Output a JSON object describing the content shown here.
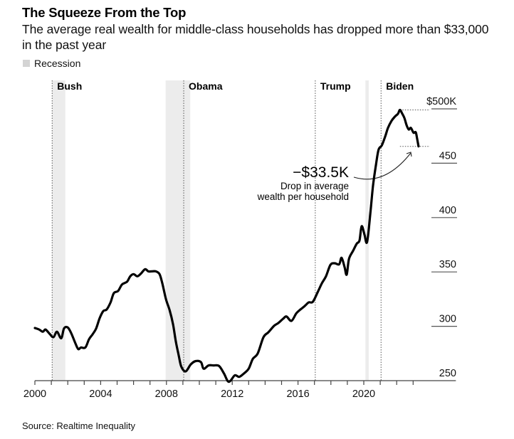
{
  "header": {
    "title": "The Squeeze From the Top",
    "subtitle": "The average real wealth for middle-class households has dropped more than $33,000 in the past year"
  },
  "legend": {
    "items": [
      {
        "label": "Recession",
        "color": "#d4d4d4"
      }
    ]
  },
  "footer": {
    "source": "Source: Realtime Inequality"
  },
  "chart_data": {
    "type": "line",
    "title": "The Squeeze From the Top",
    "subtitle": "The average real wealth for middle-class households has dropped more than $33,000 in the past year",
    "xlabel": "",
    "ylabel": "",
    "units": "thousands of dollars",
    "xlim": [
      2000,
      2025.6
    ],
    "ylim": [
      250,
      500
    ],
    "x_ticks": [
      2000,
      2001,
      2002,
      2003,
      2004,
      2005,
      2006,
      2007,
      2008,
      2009,
      2010,
      2011,
      2012,
      2013,
      2014,
      2015,
      2016,
      2017,
      2018,
      2019,
      2020,
      2021,
      2022,
      2023
    ],
    "x_tick_labels": [
      {
        "value": 2000,
        "label": "2000"
      },
      {
        "value": 2004,
        "label": "2004"
      },
      {
        "value": 2008,
        "label": "2008"
      },
      {
        "value": 2012,
        "label": "2012"
      },
      {
        "value": 2016,
        "label": "2016"
      },
      {
        "value": 2020,
        "label": "2020"
      }
    ],
    "y_ticks": [
      {
        "value": 500,
        "label": "$500K"
      },
      {
        "value": 450,
        "label": "450"
      },
      {
        "value": 400,
        "label": "400"
      },
      {
        "value": 350,
        "label": "350"
      },
      {
        "value": 300,
        "label": "300"
      },
      {
        "value": 250,
        "label": "250"
      }
    ],
    "y_axis_position": "right",
    "grid": false,
    "legend_position": "top-left",
    "line_color": "#000000",
    "recessions": [
      {
        "start": 2001.05,
        "end": 2001.85
      },
      {
        "start": 2007.95,
        "end": 2009.45
      },
      {
        "start": 2020.1,
        "end": 2020.3
      }
    ],
    "recession_color": "#ececec",
    "presidents": [
      {
        "name": "Bush",
        "start": 2001.05
      },
      {
        "name": "Obama",
        "start": 2009.05
      },
      {
        "name": "Trump",
        "start": 2017.05
      },
      {
        "name": "Biden",
        "start": 2021.05
      }
    ],
    "annotation": {
      "value_label": "−$33.5K",
      "text_lines": [
        "Drop in average",
        "wealth per household"
      ],
      "peak": {
        "x": 2022.2,
        "y": 499
      },
      "latest": {
        "x": 2023.33,
        "y": 465.5
      }
    },
    "series": [
      {
        "name": "Average real wealth, middle-class households",
        "x": [
          2000.0,
          2000.26,
          2000.48,
          2000.65,
          2000.9,
          2001.13,
          2001.34,
          2001.6,
          2001.77,
          2001.99,
          2002.2,
          2002.47,
          2002.64,
          2002.8,
          2003.07,
          2003.29,
          2003.5,
          2003.72,
          2003.94,
          2004.16,
          2004.37,
          2004.6,
          2004.8,
          2005.06,
          2005.3,
          2005.6,
          2005.8,
          2006.0,
          2006.23,
          2006.45,
          2006.7,
          2006.9,
          2007.1,
          2007.36,
          2007.58,
          2007.75,
          2007.97,
          2008.2,
          2008.4,
          2008.57,
          2008.75,
          2008.9,
          2009.17,
          2009.48,
          2009.78,
          2010.1,
          2010.26,
          2010.56,
          2010.87,
          2011.2,
          2011.5,
          2011.73,
          2011.9,
          2012.16,
          2012.42,
          2012.7,
          2013.0,
          2013.25,
          2013.55,
          2013.9,
          2014.2,
          2014.55,
          2014.8,
          2015.1,
          2015.3,
          2015.6,
          2015.9,
          2016.15,
          2016.4,
          2016.65,
          2016.9,
          2017.2,
          2017.45,
          2017.7,
          2017.97,
          2018.23,
          2018.5,
          2018.65,
          2018.83,
          2018.96,
          2019.1,
          2019.35,
          2019.57,
          2019.74,
          2019.87,
          2020.04,
          2020.2,
          2020.4,
          2020.56,
          2020.74,
          2020.9,
          2021.1,
          2021.3,
          2021.47,
          2021.69,
          2021.9,
          2022.08,
          2022.2,
          2022.34,
          2022.47,
          2022.6,
          2022.73,
          2022.86,
          2023.03,
          2023.16,
          2023.25,
          2023.33
        ],
        "values": [
          298.4,
          297,
          295,
          297,
          293,
          290,
          295,
          289,
          298,
          299,
          294,
          284,
          279,
          280.5,
          280.5,
          288,
          292.5,
          297.8,
          307.5,
          314,
          315.5,
          322,
          330.5,
          332.5,
          338.5,
          341,
          346,
          348,
          346,
          348.5,
          352.5,
          350.5,
          350.5,
          350.5,
          348,
          339.5,
          325,
          314.5,
          302,
          286,
          273,
          263,
          258.5,
          265,
          268,
          267,
          261,
          264,
          264,
          263.5,
          256.5,
          249.5,
          250,
          255,
          253.5,
          256.5,
          261,
          270,
          275,
          290,
          294.5,
          300.5,
          303,
          307,
          309,
          305,
          312,
          315.5,
          318.5,
          322,
          322.5,
          331.5,
          339.5,
          346,
          356.5,
          358,
          357,
          363,
          354.5,
          347.5,
          362,
          369.5,
          376,
          379,
          392,
          384.5,
          377.5,
          404,
          429,
          448.5,
          462.5,
          466.5,
          474.5,
          482.5,
          489,
          493,
          495.5,
          499,
          495.5,
          491.5,
          485,
          481,
          482.5,
          478,
          478.5,
          472,
          465.5
        ]
      }
    ]
  }
}
